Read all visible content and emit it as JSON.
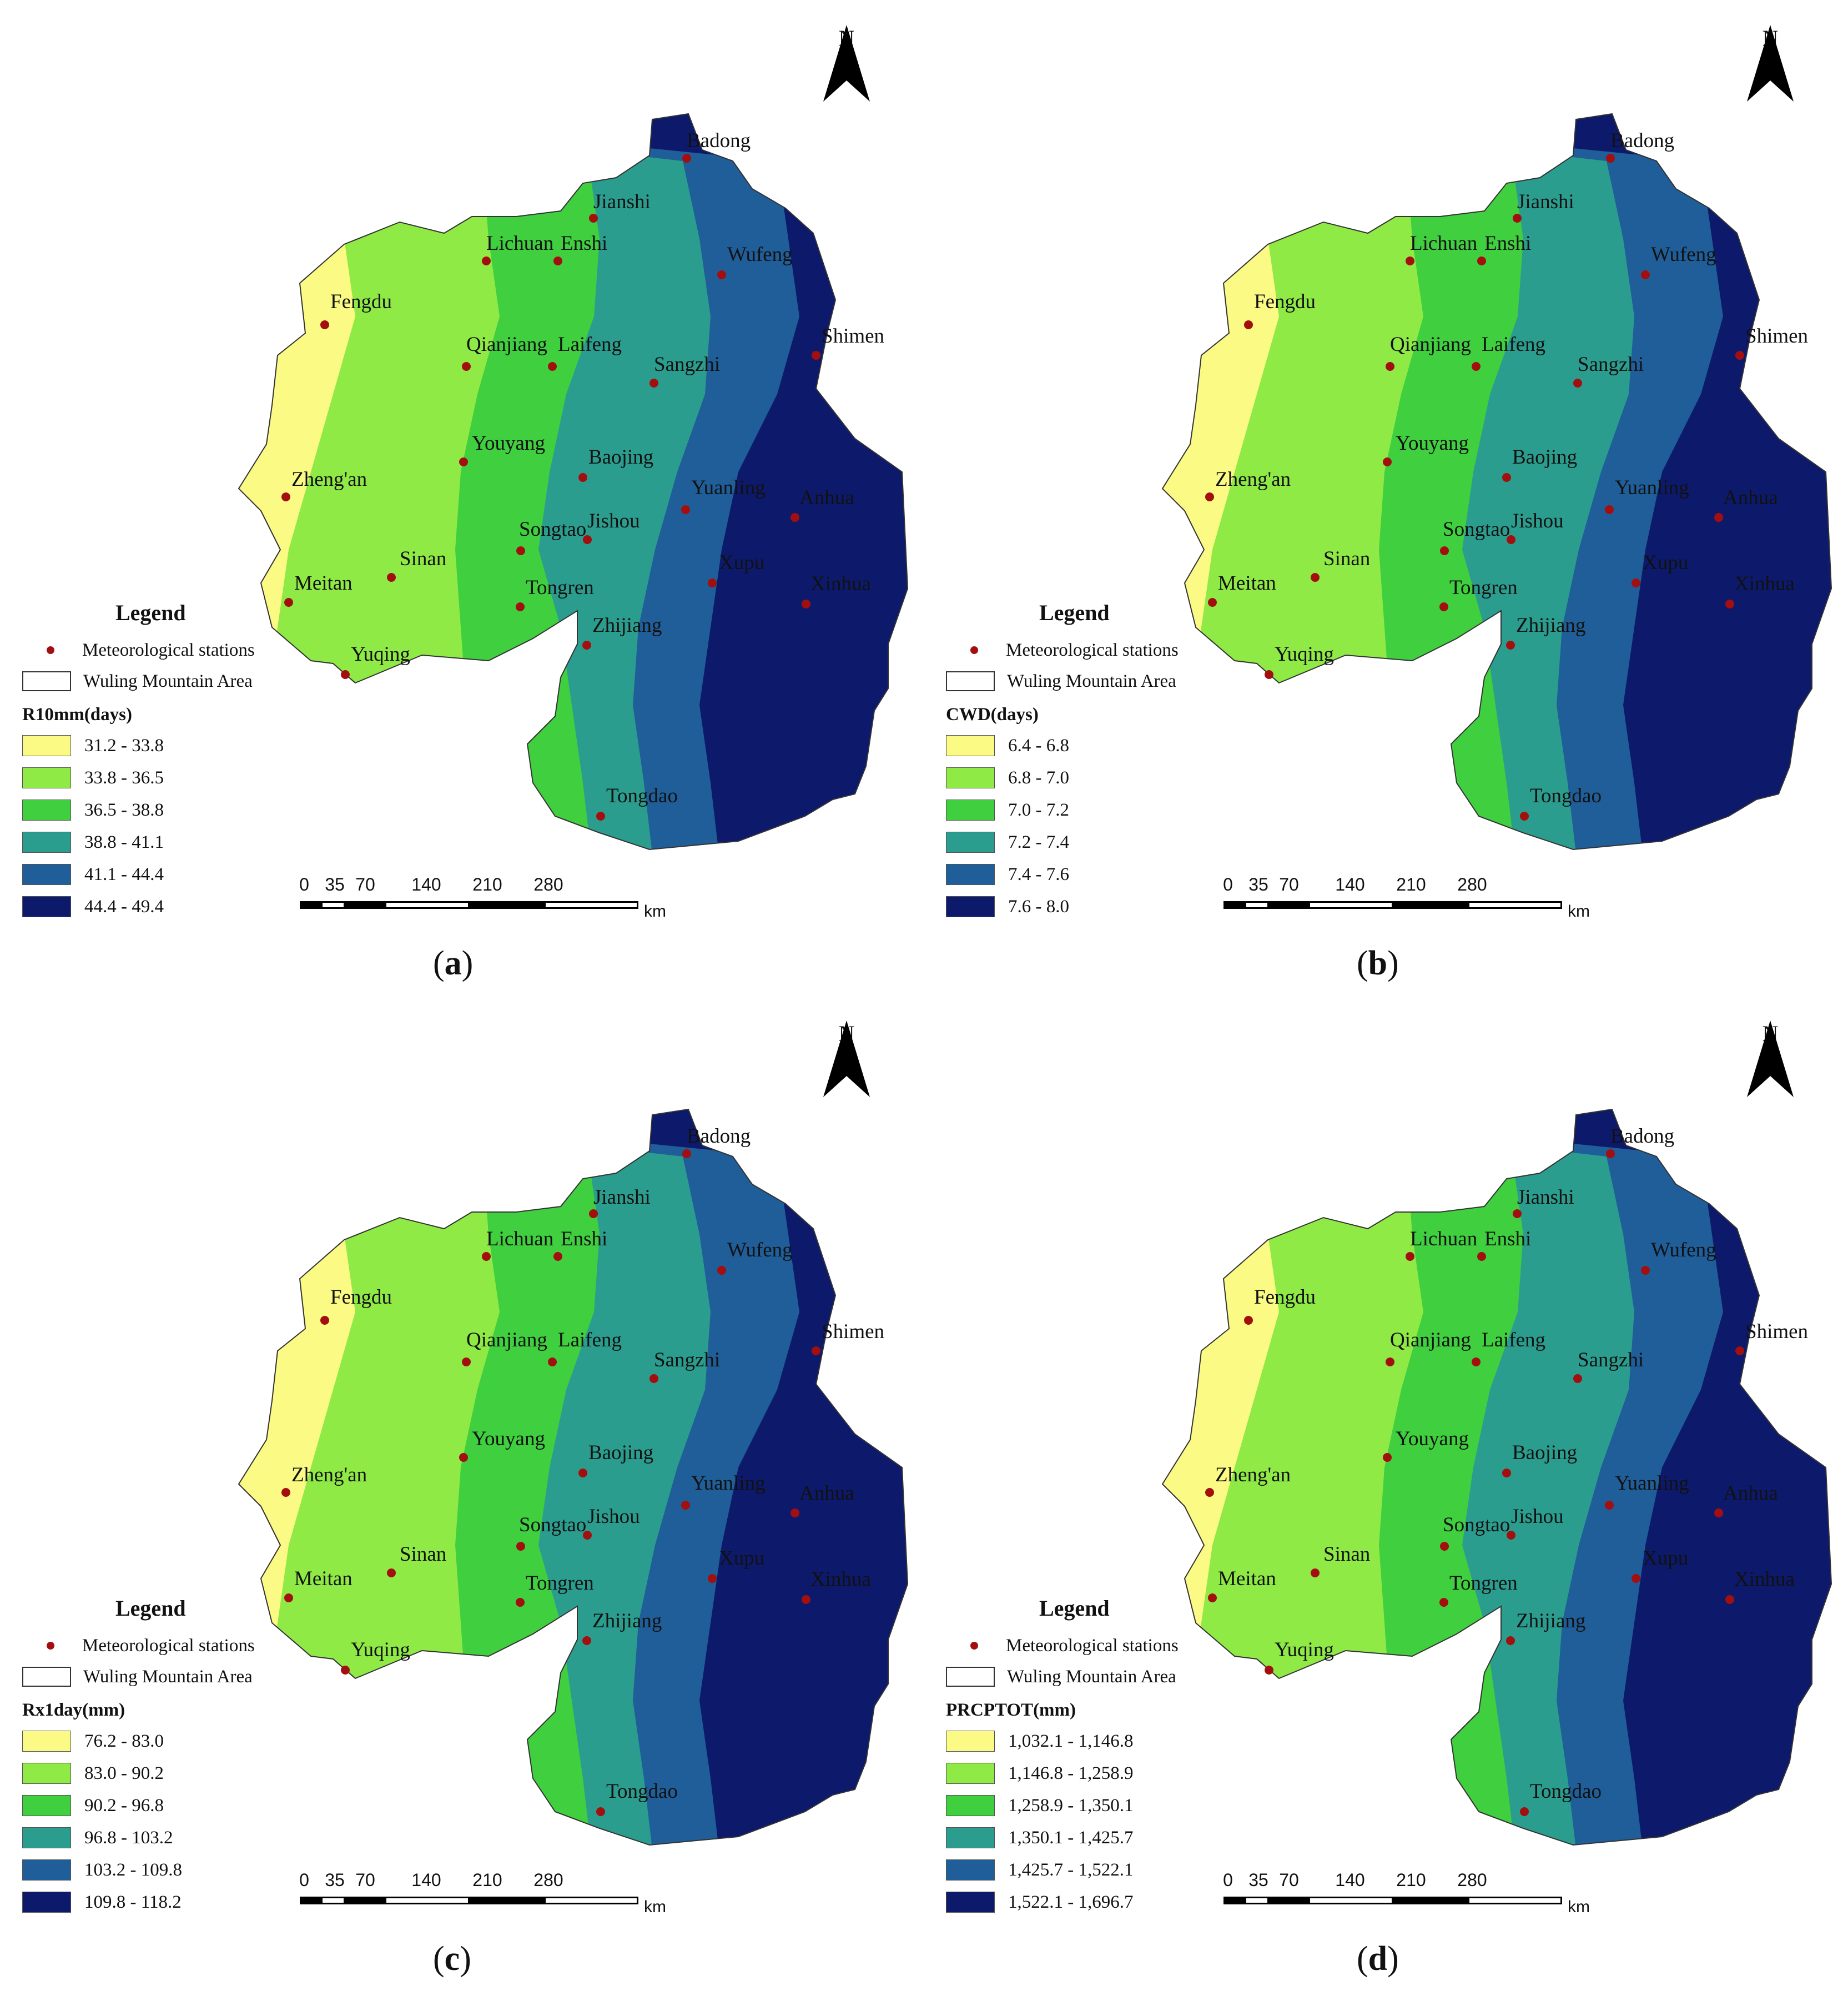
{
  "shared": {
    "station_legend_label": "Meteorological stations",
    "area_legend_label": "Wuling Mountain Area",
    "legend_title": "Legend",
    "north_label": "N",
    "scale_ticks": [
      "0",
      "35",
      "70",
      "140",
      "210",
      "280"
    ],
    "scale_unit": "km",
    "palette": [
      "#fbfa85",
      "#90ea45",
      "#3fcf3f",
      "#2b9d8f",
      "#1f5e98",
      "#0d1a6c"
    ],
    "station_color": "#a30f0f",
    "stations": [
      "Badong",
      "Jianshi",
      "Lichuan",
      "Enshi",
      "Wufeng",
      "Fengdu",
      "Qianjiang",
      "Laifeng",
      "Sangzhi",
      "Shimen",
      "Youyang",
      "Baojing",
      "Zheng'an",
      "Yuanling",
      "Anhua",
      "Songtao",
      "Jishou",
      "Sinan",
      "Xupu",
      "Meitan",
      "Tongren",
      "Xinhua",
      "Zhijiang",
      "Yuqing",
      "Tongdao"
    ]
  },
  "panels": [
    {
      "caption_letter": "a",
      "field_label": "R10mm(days)",
      "classes": [
        "31.2 - 33.8",
        "33.8 - 36.5",
        "36.5 - 38.8",
        "38.8 - 41.1",
        "41.1 - 44.4",
        "44.4 - 49.4"
      ]
    },
    {
      "caption_letter": "b",
      "field_label": "CWD(days)",
      "classes": [
        "6.4 - 6.8",
        "6.8 - 7.0",
        "7.0 - 7.2",
        "7.2 - 7.4",
        "7.4 - 7.6",
        "7.6 - 8.0"
      ]
    },
    {
      "caption_letter": "c",
      "field_label": "Rx1day(mm)",
      "classes": [
        "76.2 - 83.0",
        "83.0 - 90.2",
        "90.2 - 96.8",
        "96.8 - 103.2",
        "103.2 - 109.8",
        "109.8 - 118.2"
      ]
    },
    {
      "caption_letter": "d",
      "field_label": "PRCPTOT(mm)",
      "classes": [
        "1,032.1 - 1,146.8",
        "1,146.8 - 1,258.9",
        "1,258.9 - 1,350.1",
        "1,350.1 - 1,425.7",
        "1,425.7 - 1,522.1",
        "1,522.1 - 1,696.7"
      ]
    }
  ]
}
